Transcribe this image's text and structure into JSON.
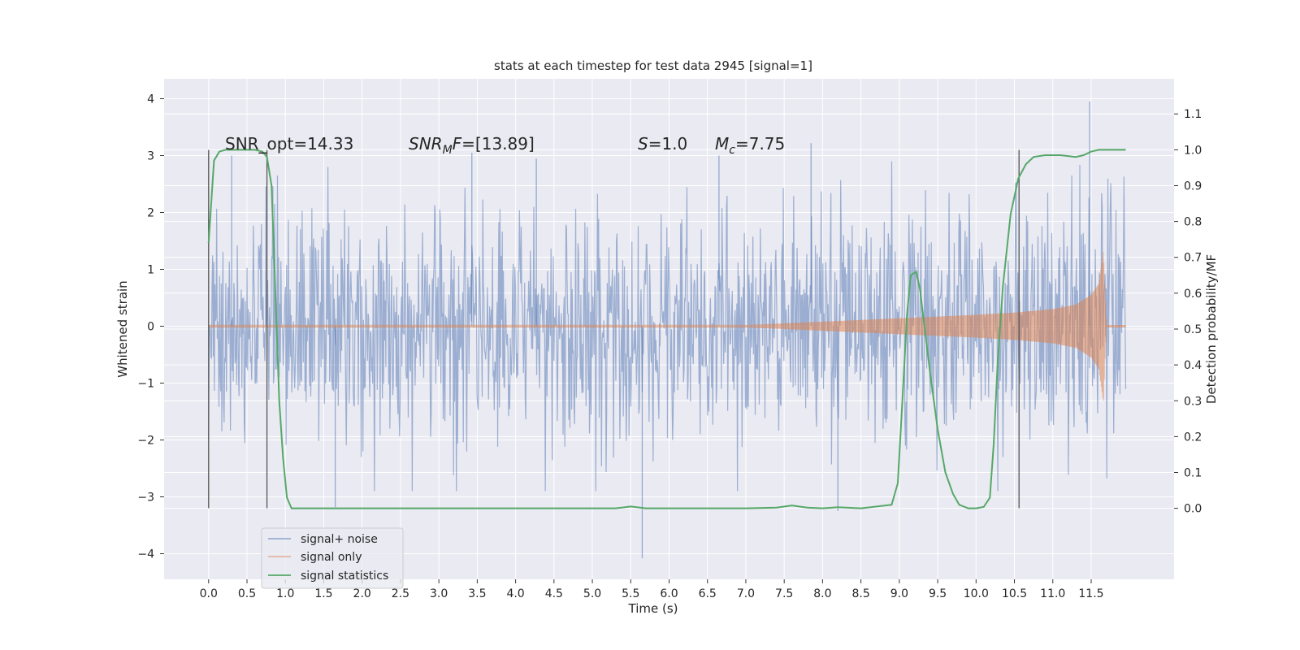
{
  "chart_data": {
    "type": "line",
    "title": "stats at each timestep for test data 2945 [signal=1]",
    "xlabel": "Time (s)",
    "ylabel": "Whitened strain",
    "y2label": "Detection probability/MF",
    "xlim": [
      -0.58,
      12.58
    ],
    "ylim": [
      -4.45,
      4.35
    ],
    "y2lim": [
      -0.198,
      1.198
    ],
    "x_ticks": [
      "0.0",
      "0.5",
      "1.0",
      "1.5",
      "2.0",
      "2.5",
      "3.0",
      "3.5",
      "4.0",
      "4.5",
      "5.0",
      "5.5",
      "6.0",
      "6.5",
      "7.0",
      "7.5",
      "8.0",
      "8.5",
      "9.0",
      "9.5",
      "10.0",
      "10.5",
      "11.0",
      "11.5"
    ],
    "y_ticks": [
      "−4",
      "−3",
      "−2",
      "−1",
      "0",
      "1",
      "2",
      "3",
      "4"
    ],
    "y2_ticks": [
      "0.0",
      "0.1",
      "0.2",
      "0.3",
      "0.4",
      "0.5",
      "0.6",
      "0.7",
      "0.8",
      "0.9",
      "1.0",
      "1.1"
    ],
    "grid": true,
    "legend_position": "lower-left",
    "colors": {
      "background": "#eaeaf2",
      "grid": "#ffffff",
      "signal_noise": "#4c72b0",
      "signal_only": "#dd8452",
      "statistics": "#55a868",
      "vline": "#555555"
    },
    "annotations": {
      "snr_opt": "SNR_opt=14.33",
      "snr_mf_main": "SNR",
      "snr_mf_sub": "M",
      "snr_mf_rest": "F=[13.89]",
      "s_main": "S",
      "s_rest": "=1.0",
      "mc_main": "M",
      "mc_sub": "c",
      "mc_rest": "=7.75"
    },
    "vertical_lines": [
      {
        "x": 0.0,
        "y_range": [
          -3.2,
          3.1
        ]
      },
      {
        "x": 0.76,
        "y_range": [
          -3.2,
          3.1
        ]
      },
      {
        "x": 10.56,
        "y_range": [
          -3.2,
          3.1
        ]
      }
    ],
    "series": [
      {
        "name": "signal+ noise",
        "kind": "noise",
        "x_range": [
          0.0,
          11.95
        ],
        "typical_amplitude": 1.0,
        "extremes": [
          [
            5.65,
            -4.08
          ],
          [
            11.48,
            3.95
          ],
          [
            3.43,
            3.05
          ],
          [
            1.65,
            -3.18
          ],
          [
            8.2,
            -3.25
          ],
          [
            7.85,
            3.22
          ],
          [
            0.3,
            3.0
          ],
          [
            4.27,
            2.95
          ],
          [
            6.65,
            3.0
          ]
        ]
      },
      {
        "name": "signal only",
        "kind": "chirp",
        "x": [
          7.0,
          7.5,
          8.0,
          8.5,
          9.0,
          9.5,
          10.0,
          10.5,
          11.0,
          11.3,
          11.5,
          11.6,
          11.66,
          11.68,
          11.7,
          11.95
        ],
        "envelope": [
          0.02,
          0.05,
          0.08,
          0.11,
          0.14,
          0.17,
          0.2,
          0.24,
          0.3,
          0.38,
          0.55,
          0.75,
          1.35,
          0.6,
          0.02,
          0.02
        ]
      },
      {
        "name": "signal statistics",
        "kind": "line",
        "axis": "right",
        "x": [
          0.0,
          0.07,
          0.14,
          0.22,
          0.4,
          0.6,
          0.7,
          0.76,
          0.82,
          0.87,
          0.92,
          0.97,
          1.02,
          1.08,
          1.5,
          2.0,
          3.0,
          4.0,
          5.0,
          5.3,
          5.5,
          5.7,
          6.0,
          7.0,
          7.4,
          7.6,
          7.8,
          8.0,
          8.2,
          8.5,
          8.9,
          8.98,
          9.04,
          9.1,
          9.15,
          9.22,
          9.27,
          9.32,
          9.4,
          9.5,
          9.6,
          9.7,
          9.78,
          9.85,
          9.9,
          10.0,
          10.1,
          10.18,
          10.23,
          10.28,
          10.35,
          10.45,
          10.55,
          10.65,
          10.75,
          10.9,
          11.1,
          11.3,
          11.4,
          11.5,
          11.6,
          11.8,
          11.95
        ],
        "values": [
          0.74,
          0.97,
          0.995,
          1.0,
          1.0,
          1.0,
          0.995,
          0.98,
          0.9,
          0.6,
          0.3,
          0.14,
          0.03,
          0.0,
          0.0,
          0.0,
          0.0,
          0.0,
          0.0,
          0.0,
          0.005,
          0.0,
          0.0,
          0.0,
          0.002,
          0.008,
          0.002,
          0.0,
          0.003,
          0.0,
          0.01,
          0.07,
          0.3,
          0.54,
          0.65,
          0.66,
          0.61,
          0.52,
          0.38,
          0.22,
          0.1,
          0.04,
          0.01,
          0.004,
          0.0,
          0.0,
          0.004,
          0.03,
          0.18,
          0.4,
          0.62,
          0.82,
          0.92,
          0.96,
          0.98,
          0.985,
          0.985,
          0.98,
          0.985,
          0.995,
          1.0,
          1.0,
          1.0
        ]
      }
    ]
  }
}
